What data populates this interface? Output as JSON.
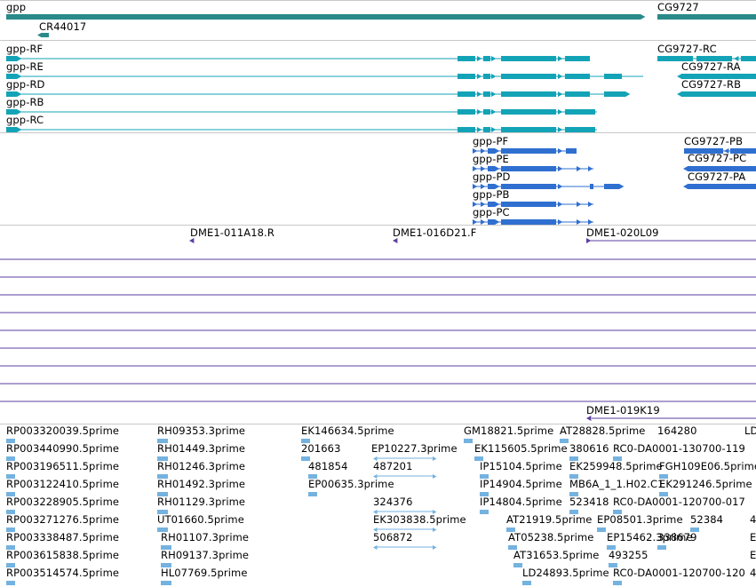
{
  "colors": {
    "gene": "#2a8a8a",
    "transcript": "#13a3b7",
    "protein": "#2f6fd0",
    "clone": "#5b3fa0",
    "est": "#74b2e0",
    "separator": "#c8c8c8"
  },
  "tracks": {
    "genes": {
      "labels": [
        "gpp",
        "CG9727",
        "CR44017"
      ]
    },
    "transcripts": {
      "labels": [
        "gpp-RF",
        "gpp-RE",
        "gpp-RD",
        "gpp-RB",
        "gpp-RC",
        "CG9727-RC",
        "CG9727-RA",
        "CG9727-RB"
      ]
    },
    "proteins": {
      "labels": [
        "gpp-PF",
        "gpp-PE",
        "gpp-PD",
        "gpp-PB",
        "gpp-PC",
        "CG9727-PB",
        "CG9727-PC",
        "CG9727-PA"
      ]
    },
    "clones": {
      "labels": [
        "DME1-011A18.R",
        "DME1-016D21.F",
        "DME1-020L09",
        "DME1-019K19"
      ]
    },
    "ests": {
      "col1": [
        "RP003320039.5prime",
        "RP003440990.5prime",
        "RP003196511.5prime",
        "RP003122410.5prime",
        "RP003228905.5prime",
        "RP003271276.5prime",
        "RP003338487.5prime",
        "RP003615838.5prime",
        "RP003514574.5prime"
      ],
      "col2": [
        "RH09353.3prime",
        "RH01449.3prime",
        "RH01246.3prime",
        "RH01492.3prime",
        "RH01129.3prime",
        "UT01660.5prime",
        "RH01107.3prime",
        "RH09137.3prime",
        "HL07769.5prime"
      ],
      "col3": [
        "EK146634.5prime",
        "201663",
        "481854",
        "EP00635.3prime"
      ],
      "col4": [
        "EP10227.3prime",
        "487201",
        "324376",
        "EK303838.5prime",
        "506872"
      ],
      "col5": [
        "GM18821.5prime",
        "EK115605.5prime",
        "IP15104.5prime",
        "IP14904.5prime",
        "IP14804.5prime"
      ],
      "col6": [
        "AT28828.5prime",
        "AT21919.5prime",
        "AT05238.5prime",
        "AT31653.5prime",
        "LD24893.5prime"
      ],
      "col7": [
        "380616",
        "EK259948.5prime",
        "MB6A_1_1.H02.C1",
        "523418",
        "EP08501.3prime",
        "EP15462.3prime",
        "493255",
        "RC0-DA0001-120700-120"
      ],
      "col8": [
        "RC0-DA0001-130700-119",
        "FGH109E06.5prime",
        "EK291246.5prime",
        "RC0-DA0001-120700-017",
        "52384",
        "338679"
      ],
      "col9": [
        "164280",
        "LD",
        "4",
        "E",
        "E",
        "4"
      ]
    }
  }
}
